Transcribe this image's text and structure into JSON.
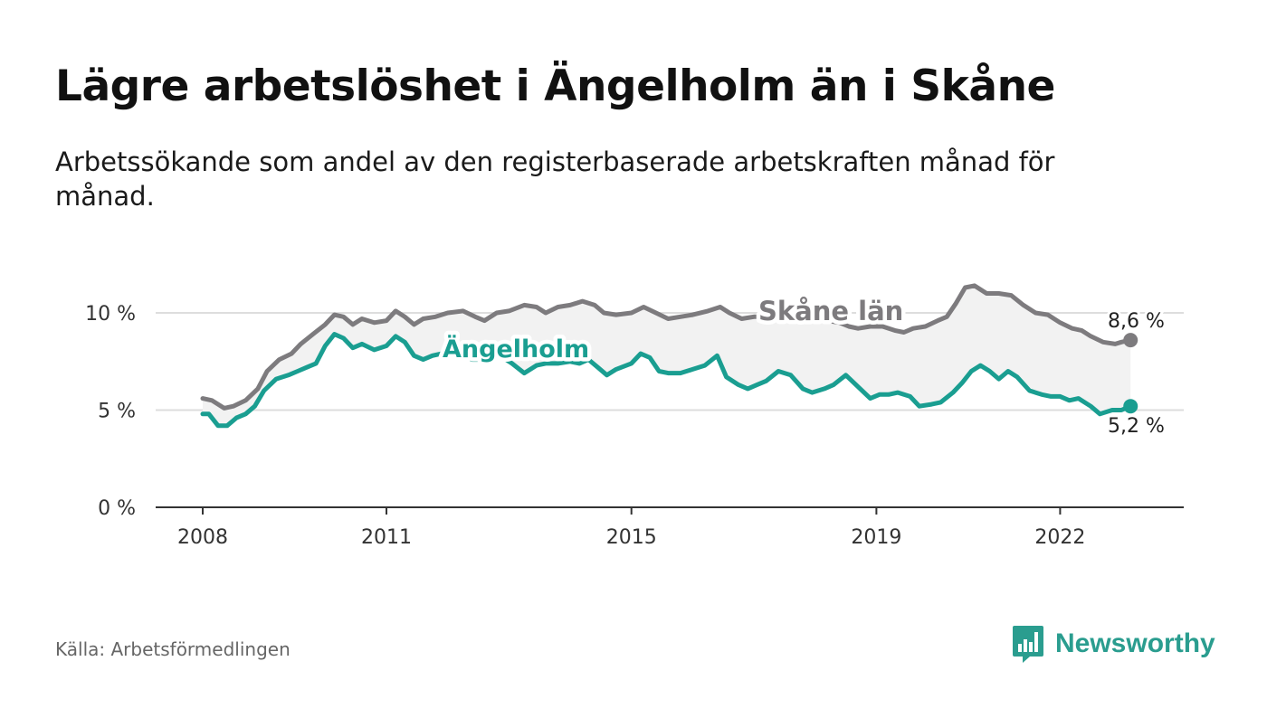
{
  "title": "Lägre arbetslöshet i Ängelholm än i Skåne",
  "subtitle": "Arbetssökande som andel av den registerbaserade arbetskraften månad för månad.",
  "source": "Källa: Arbetsförmedlingen",
  "brand": "Newsworthy",
  "colors": {
    "skane": "#7d7b7e",
    "angelholm": "#1a9e91",
    "band": "#f2f2f2",
    "grid": "#dddddd",
    "axis": "#333333",
    "brand": "#2a9d8f"
  },
  "chart_data": {
    "type": "line",
    "x_range": [
      2008.0,
      2023.25
    ],
    "ylim": [
      0,
      12.5
    ],
    "y_ticks": [
      {
        "value": 0,
        "label": "0 %"
      },
      {
        "value": 5,
        "label": "5 %"
      },
      {
        "value": 10,
        "label": "10 %"
      }
    ],
    "x_ticks": [
      {
        "value": 2008.0,
        "label": "2008"
      },
      {
        "value": 2011.0,
        "label": "2011"
      },
      {
        "value": 2015.0,
        "label": "2015"
      },
      {
        "value": 2019.0,
        "label": "2019"
      },
      {
        "value": 2022.0,
        "label": "2022"
      }
    ],
    "series": [
      {
        "name": "Skåne län",
        "end_label": "8,6 %",
        "points": [
          [
            2008.0,
            5.6
          ],
          [
            2008.15,
            5.5
          ],
          [
            2008.35,
            5.1
          ],
          [
            2008.5,
            5.2
          ],
          [
            2008.7,
            5.5
          ],
          [
            2008.9,
            6.1
          ],
          [
            2009.05,
            7.0
          ],
          [
            2009.25,
            7.6
          ],
          [
            2009.45,
            7.9
          ],
          [
            2009.6,
            8.4
          ],
          [
            2009.8,
            8.9
          ],
          [
            2010.0,
            9.4
          ],
          [
            2010.15,
            9.9
          ],
          [
            2010.3,
            9.8
          ],
          [
            2010.45,
            9.4
          ],
          [
            2010.6,
            9.7
          ],
          [
            2010.8,
            9.5
          ],
          [
            2011.0,
            9.6
          ],
          [
            2011.15,
            10.1
          ],
          [
            2011.3,
            9.8
          ],
          [
            2011.45,
            9.4
          ],
          [
            2011.6,
            9.7
          ],
          [
            2011.8,
            9.8
          ],
          [
            2012.0,
            10.0
          ],
          [
            2012.25,
            10.1
          ],
          [
            2012.45,
            9.8
          ],
          [
            2012.6,
            9.6
          ],
          [
            2012.8,
            10.0
          ],
          [
            2013.0,
            10.1
          ],
          [
            2013.25,
            10.4
          ],
          [
            2013.45,
            10.3
          ],
          [
            2013.6,
            10.0
          ],
          [
            2013.8,
            10.3
          ],
          [
            2014.0,
            10.4
          ],
          [
            2014.2,
            10.6
          ],
          [
            2014.4,
            10.4
          ],
          [
            2014.55,
            10.0
          ],
          [
            2014.75,
            9.9
          ],
          [
            2015.0,
            10.0
          ],
          [
            2015.2,
            10.3
          ],
          [
            2015.4,
            10.0
          ],
          [
            2015.6,
            9.7
          ],
          [
            2015.8,
            9.8
          ],
          [
            2016.0,
            9.9
          ],
          [
            2016.25,
            10.1
          ],
          [
            2016.45,
            10.3
          ],
          [
            2016.6,
            10.0
          ],
          [
            2016.8,
            9.7
          ],
          [
            2017.0,
            9.8
          ],
          [
            2017.2,
            9.8
          ],
          [
            2017.4,
            9.9
          ],
          [
            2017.6,
            9.7
          ],
          [
            2017.8,
            9.6
          ],
          [
            2018.0,
            9.7
          ],
          [
            2018.2,
            9.6
          ],
          [
            2018.4,
            9.5
          ],
          [
            2018.55,
            9.3
          ],
          [
            2018.7,
            9.2
          ],
          [
            2018.9,
            9.3
          ],
          [
            2019.1,
            9.3
          ],
          [
            2019.3,
            9.1
          ],
          [
            2019.45,
            9.0
          ],
          [
            2019.6,
            9.2
          ],
          [
            2019.8,
            9.3
          ],
          [
            2020.0,
            9.6
          ],
          [
            2020.15,
            9.8
          ],
          [
            2020.3,
            10.5
          ],
          [
            2020.45,
            11.3
          ],
          [
            2020.6,
            11.4
          ],
          [
            2020.8,
            11.0
          ],
          [
            2021.0,
            11.0
          ],
          [
            2021.2,
            10.9
          ],
          [
            2021.4,
            10.4
          ],
          [
            2021.6,
            10.0
          ],
          [
            2021.8,
            9.9
          ],
          [
            2022.0,
            9.5
          ],
          [
            2022.2,
            9.2
          ],
          [
            2022.35,
            9.1
          ],
          [
            2022.5,
            8.8
          ],
          [
            2022.7,
            8.5
          ],
          [
            2022.9,
            8.4
          ],
          [
            2023.0,
            8.5
          ],
          [
            2023.15,
            8.6
          ]
        ]
      },
      {
        "name": "Ängelholm",
        "end_label": "5,2 %",
        "points": [
          [
            2008.0,
            4.8
          ],
          [
            2008.1,
            4.8
          ],
          [
            2008.25,
            4.2
          ],
          [
            2008.4,
            4.2
          ],
          [
            2008.55,
            4.6
          ],
          [
            2008.7,
            4.8
          ],
          [
            2008.85,
            5.2
          ],
          [
            2009.0,
            6.0
          ],
          [
            2009.2,
            6.6
          ],
          [
            2009.4,
            6.8
          ],
          [
            2009.55,
            7.0
          ],
          [
            2009.7,
            7.2
          ],
          [
            2009.85,
            7.4
          ],
          [
            2010.0,
            8.3
          ],
          [
            2010.15,
            8.9
          ],
          [
            2010.3,
            8.7
          ],
          [
            2010.45,
            8.2
          ],
          [
            2010.6,
            8.4
          ],
          [
            2010.8,
            8.1
          ],
          [
            2011.0,
            8.3
          ],
          [
            2011.15,
            8.8
          ],
          [
            2011.3,
            8.5
          ],
          [
            2011.45,
            7.8
          ],
          [
            2011.6,
            7.6
          ],
          [
            2011.75,
            7.8
          ],
          [
            2011.9,
            7.9
          ],
          [
            2012.0,
            7.8
          ],
          [
            2012.2,
            7.9
          ],
          [
            2012.4,
            7.6
          ],
          [
            2012.55,
            7.6
          ],
          [
            2012.7,
            7.8
          ],
          [
            2012.9,
            7.7
          ],
          [
            2013.05,
            7.4
          ],
          [
            2013.25,
            6.9
          ],
          [
            2013.45,
            7.3
          ],
          [
            2013.6,
            7.4
          ],
          [
            2013.8,
            7.4
          ],
          [
            2014.0,
            7.5
          ],
          [
            2014.15,
            7.4
          ],
          [
            2014.3,
            7.6
          ],
          [
            2014.45,
            7.2
          ],
          [
            2014.6,
            6.8
          ],
          [
            2014.75,
            7.1
          ],
          [
            2015.0,
            7.4
          ],
          [
            2015.15,
            7.9
          ],
          [
            2015.3,
            7.7
          ],
          [
            2015.45,
            7.0
          ],
          [
            2015.6,
            6.9
          ],
          [
            2015.8,
            6.9
          ],
          [
            2016.0,
            7.1
          ],
          [
            2016.2,
            7.3
          ],
          [
            2016.4,
            7.8
          ],
          [
            2016.55,
            6.7
          ],
          [
            2016.75,
            6.3
          ],
          [
            2016.9,
            6.1
          ],
          [
            2017.05,
            6.3
          ],
          [
            2017.2,
            6.5
          ],
          [
            2017.4,
            7.0
          ],
          [
            2017.6,
            6.8
          ],
          [
            2017.8,
            6.1
          ],
          [
            2017.95,
            5.9
          ],
          [
            2018.15,
            6.1
          ],
          [
            2018.3,
            6.3
          ],
          [
            2018.5,
            6.8
          ],
          [
            2018.7,
            6.2
          ],
          [
            2018.9,
            5.6
          ],
          [
            2019.05,
            5.8
          ],
          [
            2019.2,
            5.8
          ],
          [
            2019.35,
            5.9
          ],
          [
            2019.55,
            5.7
          ],
          [
            2019.7,
            5.2
          ],
          [
            2019.9,
            5.3
          ],
          [
            2020.05,
            5.4
          ],
          [
            2020.25,
            5.9
          ],
          [
            2020.4,
            6.4
          ],
          [
            2020.55,
            7.0
          ],
          [
            2020.7,
            7.3
          ],
          [
            2020.85,
            7.0
          ],
          [
            2021.0,
            6.6
          ],
          [
            2021.15,
            7.0
          ],
          [
            2021.3,
            6.7
          ],
          [
            2021.5,
            6.0
          ],
          [
            2021.7,
            5.8
          ],
          [
            2021.85,
            5.7
          ],
          [
            2022.0,
            5.7
          ],
          [
            2022.15,
            5.5
          ],
          [
            2022.3,
            5.6
          ],
          [
            2022.5,
            5.2
          ],
          [
            2022.65,
            4.8
          ],
          [
            2022.85,
            5.0
          ],
          [
            2023.0,
            5.0
          ],
          [
            2023.15,
            5.2
          ]
        ]
      }
    ]
  }
}
